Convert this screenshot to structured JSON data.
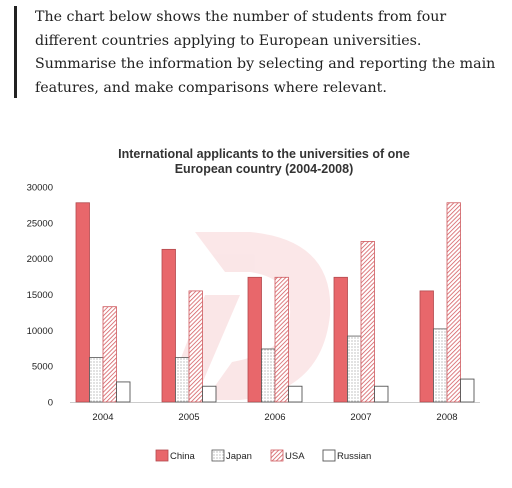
{
  "prompt": {
    "text": "The chart below shows the number of students from four different countries applying to European universities. Summarise the information by selecting and reporting the main features, and make comparisons where relevant."
  },
  "chart_data": {
    "type": "bar",
    "title_line1": "International applicants to the universities of one",
    "title_line2": "European country (2004-2008)",
    "categories": [
      "2004",
      "2005",
      "2006",
      "2007",
      "2008"
    ],
    "yticks": [
      0,
      5000,
      10000,
      15000,
      20000,
      25000,
      30000
    ],
    "ylim": [
      0,
      30000
    ],
    "grid": false,
    "legend_position": "bottom",
    "series": [
      {
        "name": "China",
        "values": [
          27800,
          21300,
          17400,
          17400,
          15500
        ]
      },
      {
        "name": "Japan",
        "values": [
          6200,
          6200,
          7400,
          9200,
          10200
        ]
      },
      {
        "name": "USA",
        "values": [
          13300,
          15500,
          17400,
          22400,
          27800
        ]
      },
      {
        "name": "Russian",
        "values": [
          2800,
          2200,
          2200,
          2200,
          3200
        ]
      }
    ],
    "colors": {
      "china": "#e8676b",
      "china_stroke": "#b34a4e",
      "pattern_stroke": "#cf5a5f",
      "japan_dot": "#999999",
      "russian_stroke": "#555555"
    }
  }
}
